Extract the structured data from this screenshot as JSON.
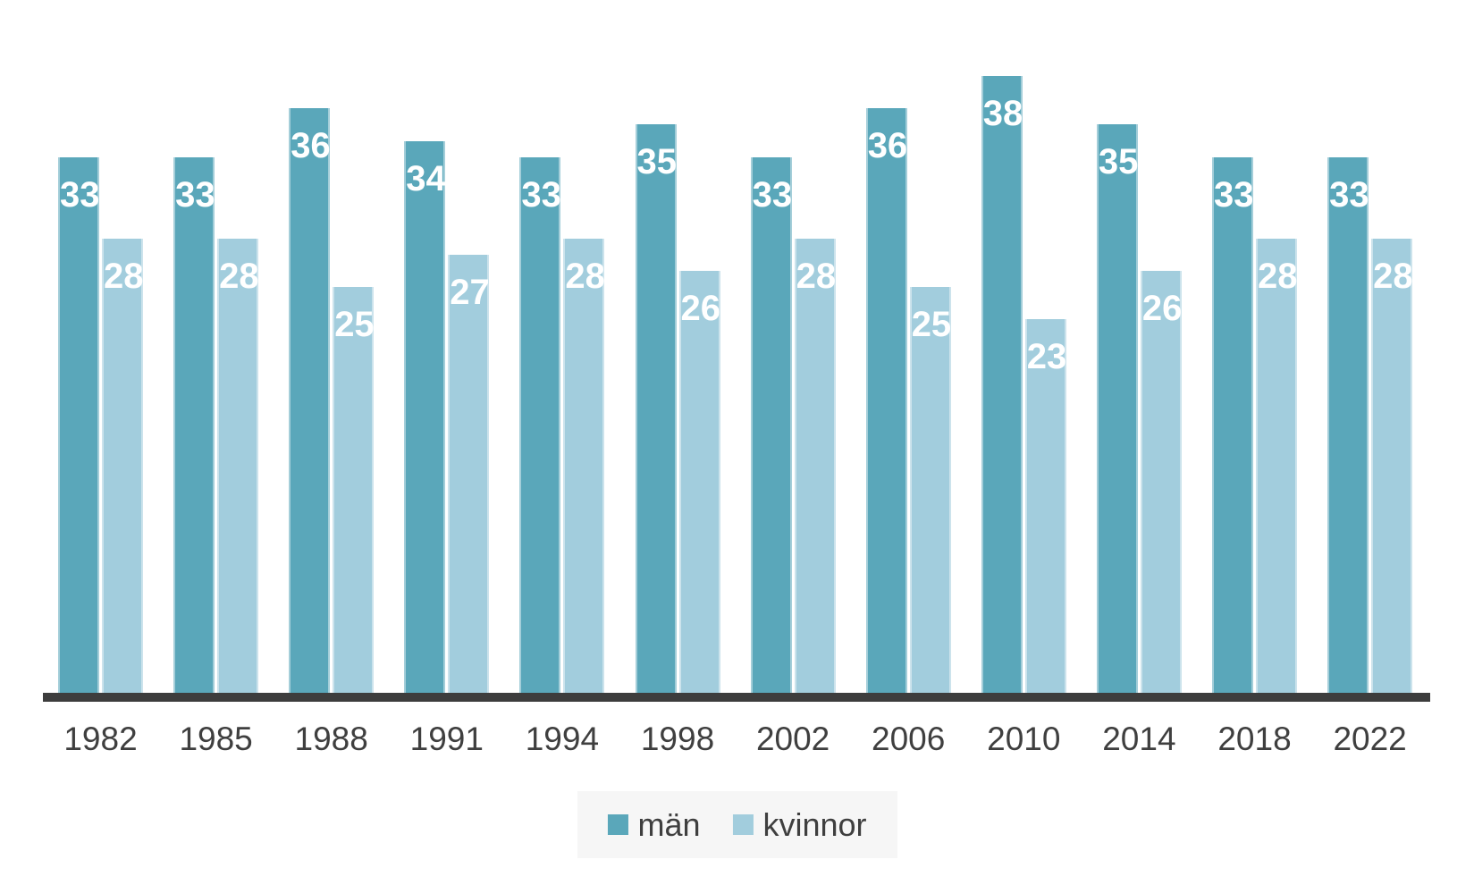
{
  "chart_data": {
    "type": "bar",
    "title": "",
    "categories": [
      "1982",
      "1985",
      "1988",
      "1991",
      "1994",
      "1998",
      "2002",
      "2006",
      "2010",
      "2014",
      "2018",
      "2022"
    ],
    "series": [
      {
        "name": "män",
        "color": "#5aa7ba",
        "values": [
          33,
          33,
          36,
          34,
          33,
          35,
          33,
          36,
          38,
          35,
          33,
          33
        ]
      },
      {
        "name": "kvinnor",
        "color": "#a2cddd",
        "values": [
          28,
          28,
          25,
          27,
          28,
          26,
          28,
          25,
          23,
          26,
          28,
          28
        ]
      }
    ],
    "value_labels_shown": true,
    "xlabel": "",
    "ylabel": "",
    "ylim": [
      0,
      40
    ],
    "grid": false,
    "legend_position": "bottom-center"
  },
  "legend": {
    "items": [
      {
        "label": "män",
        "color": "#5aa7ba"
      },
      {
        "label": "kvinnor",
        "color": "#a2cddd"
      }
    ]
  },
  "colors": {
    "bar_man": "#5aa7ba",
    "bar_kvinna": "#a2cddd",
    "axis_line": "#3d3d3d",
    "tick_text": "#3f3f3f",
    "value_label_text": "#ffffff",
    "legend_background": "#f6f6f6",
    "background": "#ffffff"
  }
}
